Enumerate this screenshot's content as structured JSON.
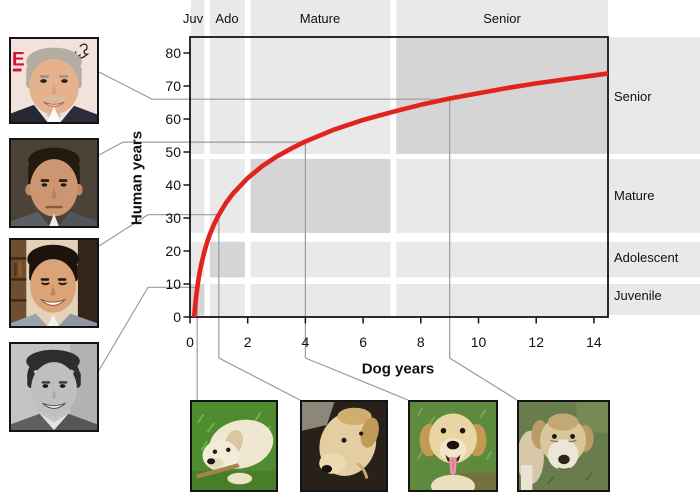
{
  "chart_data": {
    "type": "line",
    "title": "",
    "xlabel": "Dog years",
    "ylabel": "Human years",
    "x_ticks": [
      0,
      2,
      4,
      6,
      8,
      10,
      12,
      14
    ],
    "y_ticks": [
      0,
      10,
      20,
      30,
      40,
      50,
      60,
      70,
      80
    ],
    "xlim": [
      0,
      14.5
    ],
    "ylim": [
      0,
      85
    ],
    "grid": false,
    "curve": {
      "name": "dog-to-human-age-curve",
      "formula": "human_years = 16 * ln(dog_years) + 31",
      "points": [
        [
          0.145,
          0
        ],
        [
          0.17,
          2.6
        ],
        [
          0.2,
          5.2
        ],
        [
          0.25,
          8.8
        ],
        [
          0.3,
          11.7
        ],
        [
          0.35,
          14.2
        ],
        [
          0.4,
          16.3
        ],
        [
          0.5,
          19.9
        ],
        [
          0.6,
          22.8
        ],
        [
          0.7,
          25.3
        ],
        [
          0.85,
          28.4
        ],
        [
          1,
          31
        ],
        [
          1.25,
          34.6
        ],
        [
          1.5,
          37.5
        ],
        [
          2,
          42.1
        ],
        [
          2.5,
          45.7
        ],
        [
          3,
          48.6
        ],
        [
          3.5,
          51.0
        ],
        [
          4,
          53.2
        ],
        [
          5,
          56.8
        ],
        [
          6,
          59.7
        ],
        [
          7,
          62.1
        ],
        [
          8,
          64.3
        ],
        [
          9,
          66.2
        ],
        [
          10,
          67.8
        ],
        [
          11,
          69.4
        ],
        [
          12,
          70.8
        ],
        [
          13,
          72.0
        ],
        [
          14,
          73.2
        ],
        [
          14.49,
          73.8
        ]
      ]
    },
    "mappings": [
      {
        "dog_years": 0.25,
        "human_years": 9
      },
      {
        "dog_years": 1,
        "human_years": 31
      },
      {
        "dog_years": 4,
        "human_years": 53
      },
      {
        "dog_years": 9,
        "human_years": 66
      }
    ],
    "dog_life_stages": [
      {
        "label": "Juv",
        "start": 0.03,
        "end": 0.5
      },
      {
        "label": "Ado",
        "start": 0.69,
        "end": 1.9
      },
      {
        "label": "Mature",
        "start": 2.1,
        "end": 6.95
      },
      {
        "label": "Senior",
        "start": 7.15,
        "end": 14.49
      }
    ],
    "human_life_stages": [
      {
        "label": "Juvenile",
        "start": 0.6,
        "end": 10
      },
      {
        "label": "Adolescent",
        "start": 12,
        "end": 22.8
      },
      {
        "label": "Mature",
        "start": 25.5,
        "end": 47.9
      },
      {
        "label": "Senior",
        "start": 49.4,
        "end": 84.8
      }
    ],
    "colors": {
      "curve_red": "#e2231d",
      "band_light": "#e9e9e9",
      "band_dark": "#d5d5d5",
      "gap_white": "#ffffff",
      "frame": "#151515",
      "connector": "#9b9b9b",
      "text": "#111111"
    }
  },
  "photos": {
    "humans": [
      {
        "name": "man-senior",
        "subject": "gray-haired man smiling",
        "badge_text": "E"
      },
      {
        "name": "man-middle-aged",
        "subject": "middle-aged man, dark hair"
      },
      {
        "name": "man-young-adult",
        "subject": "young adult man smiling"
      },
      {
        "name": "boy-teen",
        "subject": "teenage boy, black and white photo"
      }
    ],
    "dogs": [
      {
        "name": "puppy",
        "subject": "cream labrador puppy on grass with stick"
      },
      {
        "name": "young-dog",
        "subject": "young labrador looking down"
      },
      {
        "name": "adult-dog",
        "subject": "yellow labrador, tongue out"
      },
      {
        "name": "senior-dog",
        "subject": "old pale labrador on grass"
      }
    ]
  }
}
